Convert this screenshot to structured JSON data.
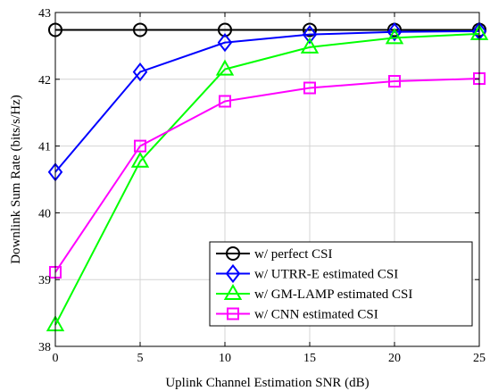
{
  "chart_data": {
    "type": "line",
    "xlabel": "Uplink Channel Estimation SNR (dB)",
    "ylabel": "Downlink Sum Rate (bits/s/Hz)",
    "xlim": [
      0,
      25
    ],
    "ylim": [
      38,
      43
    ],
    "xticks": [
      0,
      5,
      10,
      15,
      20,
      25
    ],
    "yticks": [
      38,
      39,
      40,
      41,
      42,
      43
    ],
    "grid": true,
    "legend_position": "bottom-right",
    "x": [
      0,
      5,
      10,
      15,
      20,
      25
    ],
    "series": [
      {
        "name": "w/ perfect CSI",
        "color": "#000000",
        "marker": "circle",
        "values": [
          42.74,
          42.74,
          42.74,
          42.74,
          42.74,
          42.74
        ]
      },
      {
        "name": "w/ UTRR-E estimated CSI",
        "color": "#0000ff",
        "marker": "diamond",
        "values": [
          40.61,
          42.11,
          42.55,
          42.67,
          42.71,
          42.72
        ]
      },
      {
        "name": "w/ GM-LAMP estimated CSI",
        "color": "#00ff00",
        "marker": "triangle",
        "values": [
          38.32,
          40.77,
          42.15,
          42.48,
          42.62,
          42.68
        ]
      },
      {
        "name": "w/ CNN estimated CSI",
        "color": "#ff00ff",
        "marker": "square",
        "values": [
          39.11,
          41.0,
          41.67,
          41.87,
          41.97,
          42.01
        ]
      }
    ]
  }
}
